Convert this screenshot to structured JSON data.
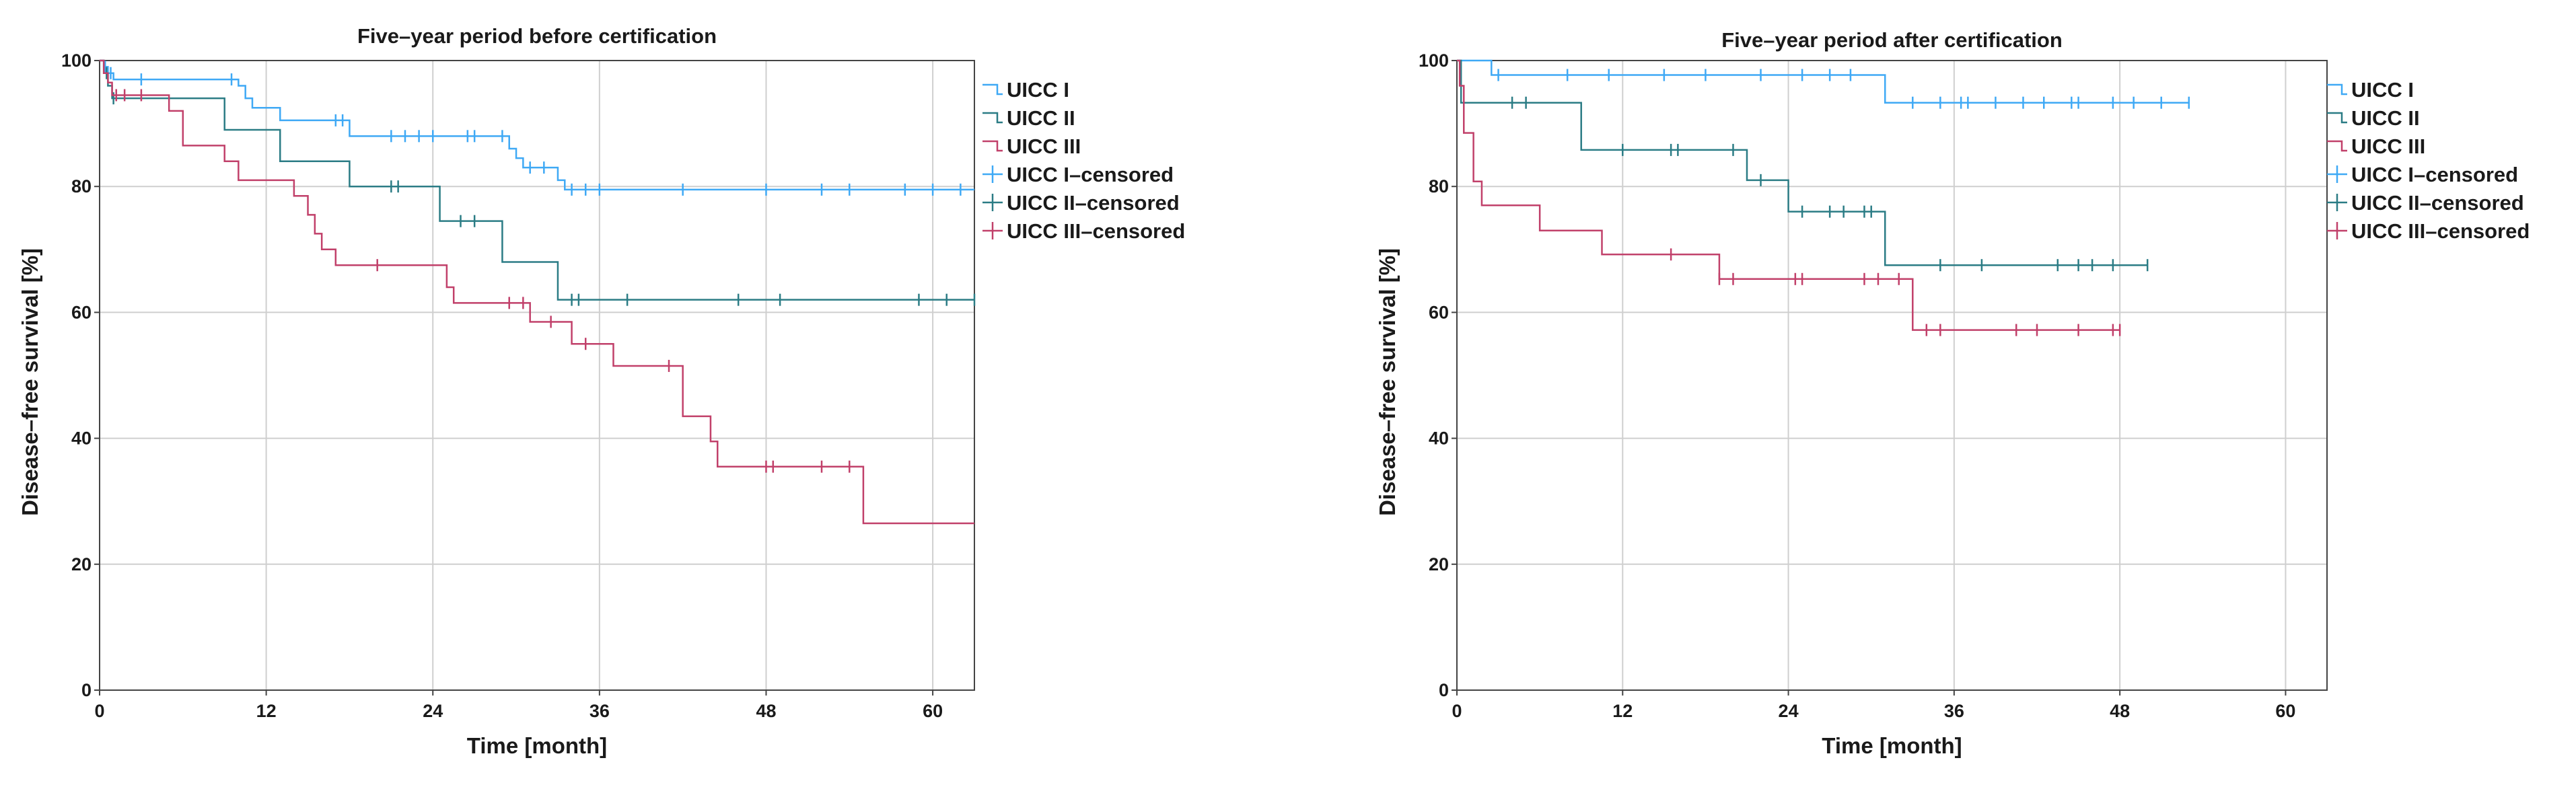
{
  "colors": {
    "uicc1": "#3fa9f5",
    "uicc2": "#2b7c85",
    "uicc3": "#c1406a",
    "grid": "#cfcfcf",
    "axis": "#444444"
  },
  "chart_data": [
    {
      "type": "line",
      "subtype": "kaplan-meier",
      "title": "Five–year period before certification",
      "xlabel": "Time [month]",
      "ylabel": "Disease–free survival [%]",
      "xlim": [
        0,
        63
      ],
      "ylim": [
        0,
        100
      ],
      "xticks": [
        "0",
        "12",
        "24",
        "36",
        "48",
        "60"
      ],
      "yticks": [
        "0",
        "20",
        "40",
        "60",
        "80",
        "100"
      ],
      "grid": true,
      "legend_position": "right",
      "legend": [
        "UICC I",
        "UICC II",
        "UICC III",
        "UICC I–censored",
        "UICC II–censored",
        "UICC III–censored"
      ],
      "series": [
        {
          "name": "UICC I",
          "color_key": "uicc1",
          "steps": [
            [
              0,
              100
            ],
            [
              0.3,
              99
            ],
            [
              0.6,
              98
            ],
            [
              1,
              97
            ],
            [
              10,
              96
            ],
            [
              10.5,
              94
            ],
            [
              11,
              92.5
            ],
            [
              13,
              90.5
            ],
            [
              18,
              88
            ],
            [
              29.5,
              86
            ],
            [
              30,
              84.5
            ],
            [
              30.5,
              83
            ],
            [
              33,
              81
            ],
            [
              33.5,
              79.5
            ],
            [
              63,
              79.5
            ]
          ],
          "censored": [
            [
              0.4,
              99
            ],
            [
              0.8,
              98
            ],
            [
              3,
              97
            ],
            [
              9.5,
              97
            ],
            [
              17,
              90.5
            ],
            [
              17.5,
              90.5
            ],
            [
              21,
              88
            ],
            [
              22,
              88
            ],
            [
              23,
              88
            ],
            [
              24,
              88
            ],
            [
              26.5,
              88
            ],
            [
              27,
              88
            ],
            [
              29,
              88
            ],
            [
              31,
              83
            ],
            [
              32,
              83
            ],
            [
              34,
              79.5
            ],
            [
              35,
              79.5
            ],
            [
              36,
              79.5
            ],
            [
              42,
              79.5
            ],
            [
              48,
              79.5
            ],
            [
              52,
              79.5
            ],
            [
              54,
              79.5
            ],
            [
              58,
              79.5
            ],
            [
              60,
              79.5
            ],
            [
              62,
              79.5
            ]
          ]
        },
        {
          "name": "UICC II",
          "color_key": "uicc2",
          "steps": [
            [
              0,
              100
            ],
            [
              0.3,
              98
            ],
            [
              0.6,
              96
            ],
            [
              0.9,
              94
            ],
            [
              9,
              89
            ],
            [
              13,
              84
            ],
            [
              18,
              80
            ],
            [
              24.5,
              74.5
            ],
            [
              29,
              68
            ],
            [
              33,
              62
            ],
            [
              63,
              62
            ]
          ],
          "censored": [
            [
              0.5,
              98
            ],
            [
              1,
              94
            ],
            [
              21,
              80
            ],
            [
              21.5,
              80
            ],
            [
              26,
              74.5
            ],
            [
              27,
              74.5
            ],
            [
              34,
              62
            ],
            [
              34.5,
              62
            ],
            [
              38,
              62
            ],
            [
              46,
              62
            ],
            [
              49,
              62
            ],
            [
              59,
              62
            ],
            [
              61,
              62
            ],
            [
              63,
              62
            ]
          ]
        },
        {
          "name": "UICC III",
          "color_key": "uicc3",
          "steps": [
            [
              0,
              100
            ],
            [
              0.3,
              98
            ],
            [
              0.6,
              96.5
            ],
            [
              0.9,
              94.5
            ],
            [
              5,
              92
            ],
            [
              6,
              86.5
            ],
            [
              9,
              84
            ],
            [
              10,
              81
            ],
            [
              14,
              78.5
            ],
            [
              15,
              75.5
            ],
            [
              15.5,
              72.5
            ],
            [
              16,
              70
            ],
            [
              17,
              67.5
            ],
            [
              25,
              64
            ],
            [
              25.5,
              61.5
            ],
            [
              31,
              58.5
            ],
            [
              34,
              55
            ],
            [
              37,
              51.5
            ],
            [
              42,
              43.5
            ],
            [
              44,
              39.5
            ],
            [
              44.5,
              35.5
            ],
            [
              55,
              26.5
            ],
            [
              63,
              26.5
            ]
          ],
          "censored": [
            [
              1.2,
              94.5
            ],
            [
              1.8,
              94.5
            ],
            [
              3,
              94.5
            ],
            [
              20,
              67.5
            ],
            [
              29.5,
              61.5
            ],
            [
              30.5,
              61.5
            ],
            [
              32.5,
              58.5
            ],
            [
              35,
              55
            ],
            [
              41,
              51.5
            ],
            [
              48,
              35.5
            ],
            [
              48.5,
              35.5
            ],
            [
              52,
              35.5
            ],
            [
              54,
              35.5
            ]
          ]
        }
      ]
    },
    {
      "type": "line",
      "subtype": "kaplan-meier",
      "title": "Five–year period after certification",
      "xlabel": "Time [month]",
      "ylabel": "Disease–free survival [%]",
      "xlim": [
        0,
        63
      ],
      "ylim": [
        0,
        100
      ],
      "xticks": [
        "0",
        "12",
        "24",
        "36",
        "48",
        "60"
      ],
      "yticks": [
        "0",
        "20",
        "40",
        "60",
        "80",
        "100"
      ],
      "grid": true,
      "legend_position": "right",
      "legend": [
        "UICC I",
        "UICC II",
        "UICC III",
        "UICC I–censored",
        "UICC II–censored",
        "UICC III–censored"
      ],
      "series": [
        {
          "name": "UICC I",
          "color_key": "uicc1",
          "steps": [
            [
              0,
              100
            ],
            [
              2.5,
              97.7
            ],
            [
              31,
              93.3
            ],
            [
              53,
              93.3
            ]
          ],
          "censored": [
            [
              3,
              97.7
            ],
            [
              8,
              97.7
            ],
            [
              11,
              97.7
            ],
            [
              15,
              97.7
            ],
            [
              18,
              97.7
            ],
            [
              22,
              97.7
            ],
            [
              25,
              97.7
            ],
            [
              27,
              97.7
            ],
            [
              28.5,
              97.7
            ],
            [
              33,
              93.3
            ],
            [
              35,
              93.3
            ],
            [
              36.5,
              93.3
            ],
            [
              37,
              93.3
            ],
            [
              39,
              93.3
            ],
            [
              41,
              93.3
            ],
            [
              42.5,
              93.3
            ],
            [
              44.5,
              93.3
            ],
            [
              45,
              93.3
            ],
            [
              47.5,
              93.3
            ],
            [
              49,
              93.3
            ],
            [
              51,
              93.3
            ],
            [
              53,
              93.3
            ]
          ]
        },
        {
          "name": "UICC II",
          "color_key": "uicc2",
          "steps": [
            [
              0,
              100
            ],
            [
              0.3,
              93.3
            ],
            [
              9,
              85.8
            ],
            [
              21,
              81
            ],
            [
              24,
              76
            ],
            [
              31,
              67.5
            ],
            [
              50,
              67.5
            ]
          ],
          "censored": [
            [
              4,
              93.3
            ],
            [
              5,
              93.3
            ],
            [
              12,
              85.8
            ],
            [
              15.5,
              85.8
            ],
            [
              16,
              85.8
            ],
            [
              20,
              85.8
            ],
            [
              22,
              81
            ],
            [
              25,
              76
            ],
            [
              27,
              76
            ],
            [
              28,
              76
            ],
            [
              29.5,
              76
            ],
            [
              30,
              76
            ],
            [
              35,
              67.5
            ],
            [
              38,
              67.5
            ],
            [
              43.5,
              67.5
            ],
            [
              45,
              67.5
            ],
            [
              46,
              67.5
            ],
            [
              47.5,
              67.5
            ],
            [
              50,
              67.5
            ]
          ]
        },
        {
          "name": "UICC III",
          "color_key": "uicc3",
          "steps": [
            [
              0,
              100
            ],
            [
              0.2,
              96
            ],
            [
              0.5,
              88.5
            ],
            [
              1.2,
              80.8
            ],
            [
              1.8,
              77
            ],
            [
              6,
              73
            ],
            [
              10.5,
              69.2
            ],
            [
              19,
              65.3
            ],
            [
              33,
              57.2
            ],
            [
              48,
              57.2
            ]
          ],
          "censored": [
            [
              15.5,
              69.2
            ],
            [
              19,
              65.3
            ],
            [
              20,
              65.3
            ],
            [
              24.5,
              65.3
            ],
            [
              25,
              65.3
            ],
            [
              29.5,
              65.3
            ],
            [
              30.5,
              65.3
            ],
            [
              32,
              65.3
            ],
            [
              34,
              57.2
            ],
            [
              35,
              57.2
            ],
            [
              40.5,
              57.2
            ],
            [
              42,
              57.2
            ],
            [
              45,
              57.2
            ],
            [
              47.5,
              57.2
            ],
            [
              48,
              57.2
            ]
          ]
        }
      ]
    }
  ]
}
